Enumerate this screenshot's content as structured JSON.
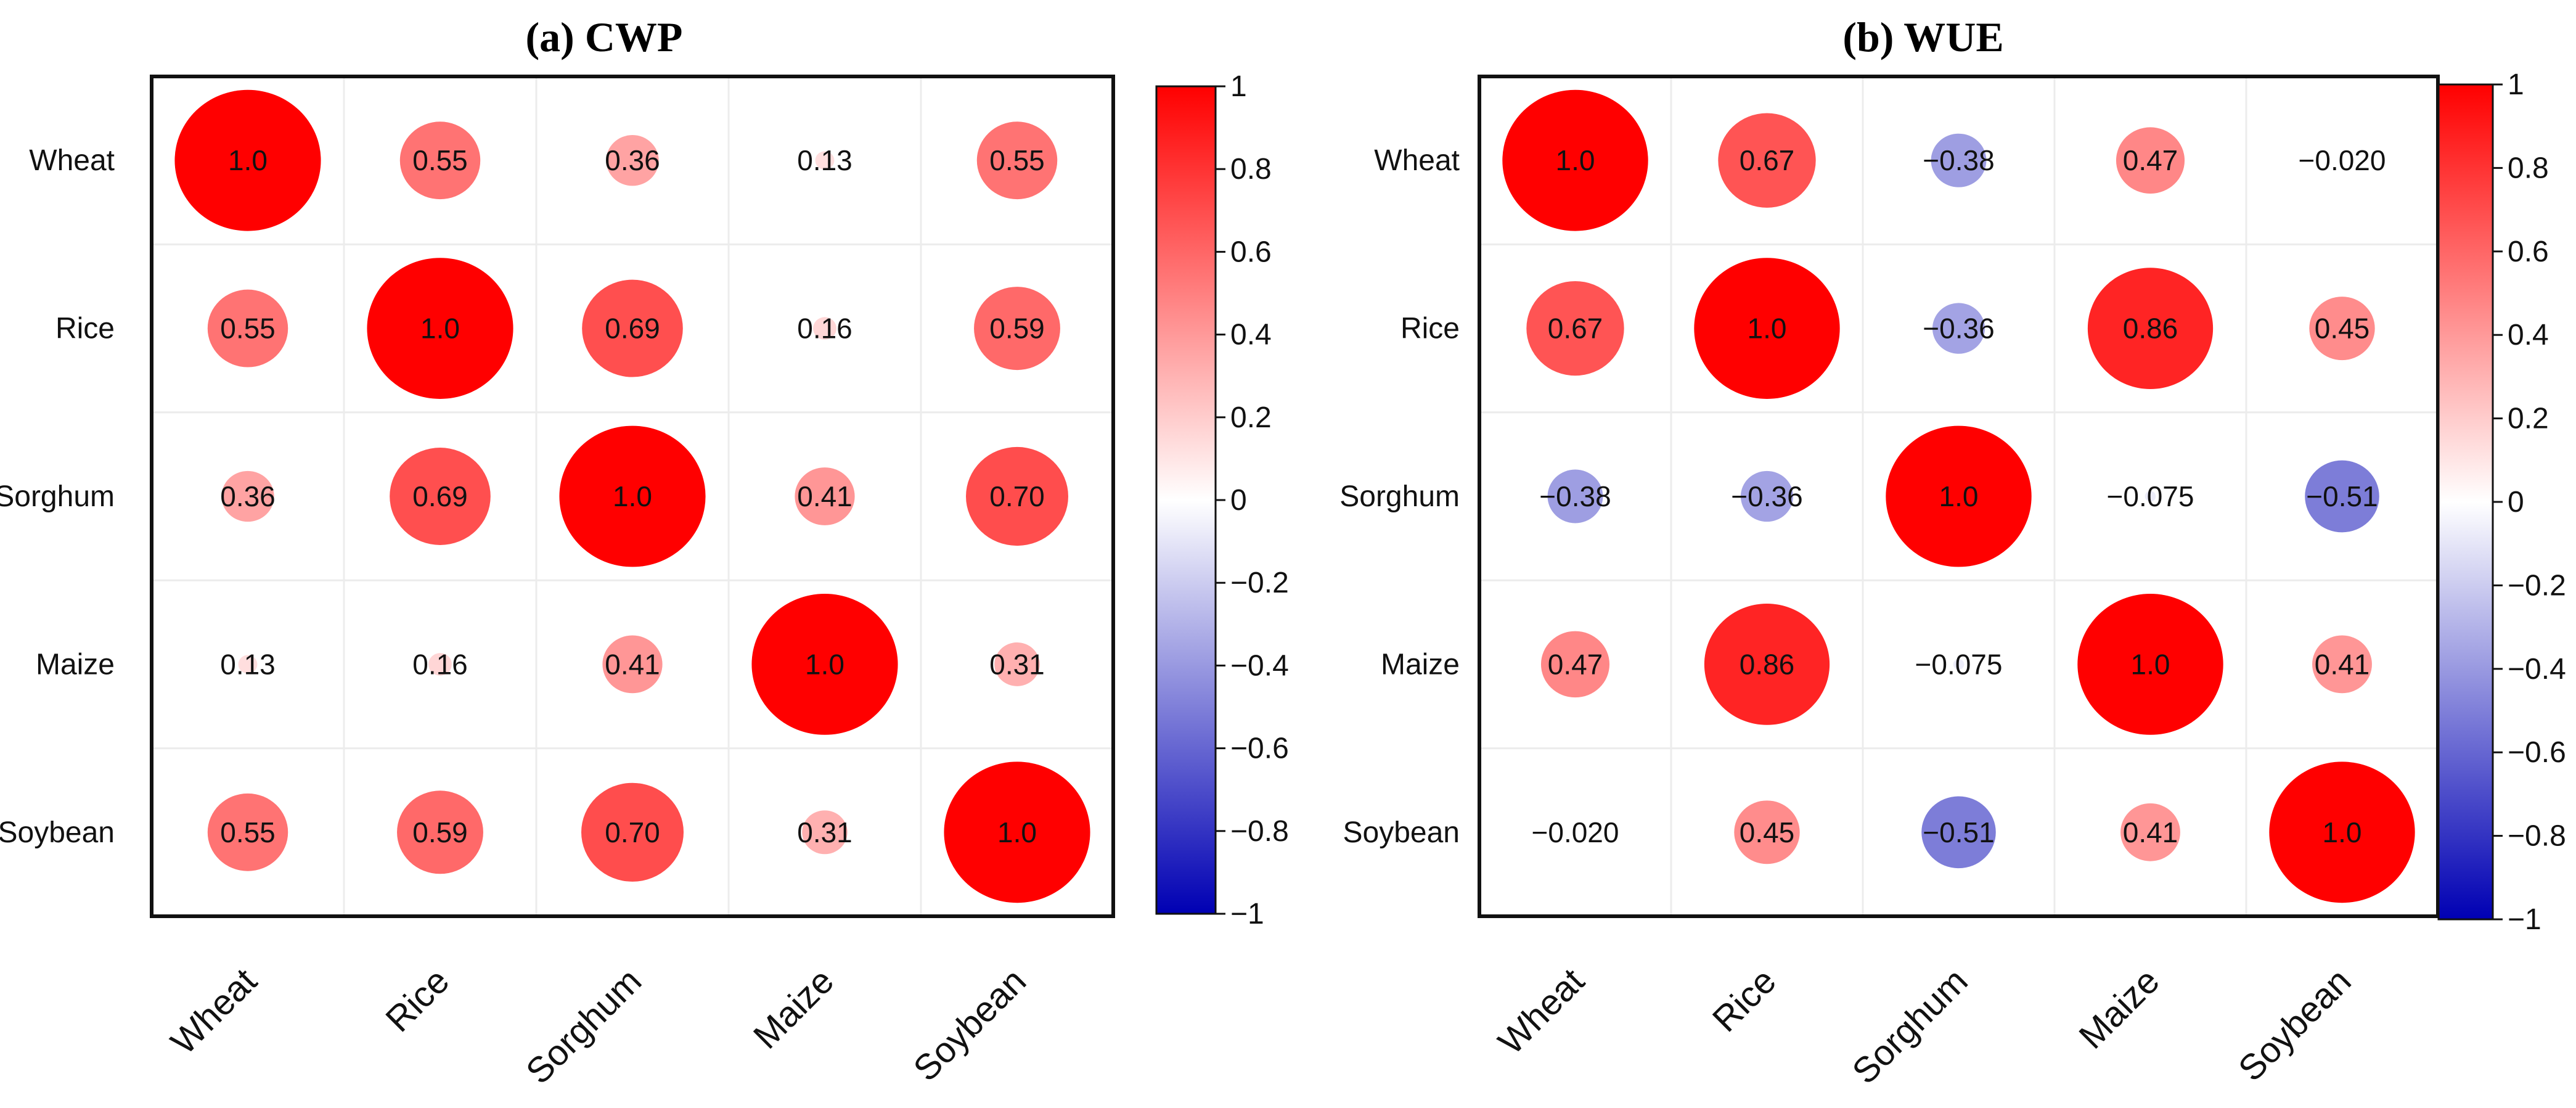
{
  "chart_data": [
    {
      "type": "heatmap",
      "title": "(a) CWP",
      "rows": [
        "Wheat",
        "Rice",
        "Sorghum",
        "Maize",
        "Soybean"
      ],
      "columns": [
        "Wheat",
        "Rice",
        "Sorghum",
        "Maize",
        "Soybean"
      ],
      "values": [
        [
          1.0,
          0.55,
          0.36,
          0.13,
          0.55
        ],
        [
          0.55,
          1.0,
          0.69,
          0.16,
          0.59
        ],
        [
          0.36,
          0.69,
          1.0,
          0.41,
          0.7
        ],
        [
          0.13,
          0.16,
          0.41,
          1.0,
          0.31
        ],
        [
          0.55,
          0.59,
          0.7,
          0.31,
          1.0
        ]
      ],
      "value_labels": [
        [
          "1.0",
          "0.55",
          "0.36",
          "0.13",
          "0.55"
        ],
        [
          "0.55",
          "1.0",
          "0.69",
          "0.16",
          "0.59"
        ],
        [
          "0.36",
          "0.69",
          "1.0",
          "0.41",
          "0.70"
        ],
        [
          "0.13",
          "0.16",
          "0.41",
          "1.0",
          "0.31"
        ],
        [
          "0.55",
          "0.59",
          "0.70",
          "0.31",
          "1.0"
        ]
      ],
      "colorbar": {
        "range": [
          -1,
          1
        ],
        "ticks": [
          "1",
          "0.8",
          "0.6",
          "0.4",
          "0.2",
          "0",
          "−0.2",
          "−0.4",
          "−0.6",
          "−0.8",
          "−1"
        ],
        "colors": {
          "negative": "#0000b3",
          "zero": "#ffffff",
          "positive": "#ff0000"
        }
      }
    },
    {
      "type": "heatmap",
      "title": "(b) WUE",
      "rows": [
        "Wheat",
        "Rice",
        "Sorghum",
        "Maize",
        "Soybean"
      ],
      "columns": [
        "Wheat",
        "Rice",
        "Sorghum",
        "Maize",
        "Soybean"
      ],
      "values": [
        [
          1.0,
          0.67,
          -0.38,
          0.47,
          -0.02
        ],
        [
          0.67,
          1.0,
          -0.36,
          0.86,
          0.45
        ],
        [
          -0.38,
          -0.36,
          1.0,
          -0.075,
          -0.51
        ],
        [
          0.47,
          0.86,
          -0.075,
          1.0,
          0.41
        ],
        [
          -0.02,
          0.45,
          -0.51,
          0.41,
          1.0
        ]
      ],
      "value_labels": [
        [
          "1.0",
          "0.67",
          "−0.38",
          "0.47",
          "−0.020"
        ],
        [
          "0.67",
          "1.0",
          "−0.36",
          "0.86",
          "0.45"
        ],
        [
          "−0.38",
          "−0.36",
          "1.0",
          "−0.075",
          "−0.51"
        ],
        [
          "0.47",
          "0.86",
          "−0.075",
          "1.0",
          "0.41"
        ],
        [
          "−0.020",
          "0.45",
          "−0.51",
          "0.41",
          "1.0"
        ]
      ],
      "colorbar": {
        "range": [
          -1,
          1
        ],
        "ticks": [
          "1",
          "0.8",
          "0.6",
          "0.4",
          "0.2",
          "0",
          "−0.2",
          "−0.4",
          "−0.6",
          "−0.8",
          "−1"
        ],
        "colors": {
          "negative": "#0000b3",
          "zero": "#ffffff",
          "positive": "#ff0000"
        }
      }
    }
  ]
}
